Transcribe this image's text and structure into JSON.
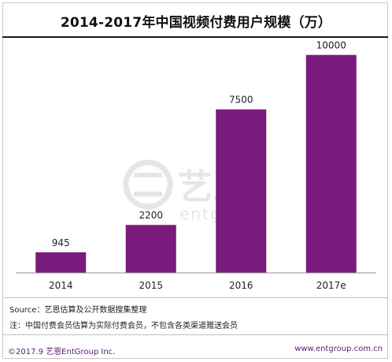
{
  "chart_data": {
    "type": "bar",
    "title": "2014-2017年中国视频付费用户规模（万）",
    "categories": [
      "2014",
      "2015",
      "2016",
      "2017e"
    ],
    "values": [
      945,
      2200,
      7500,
      10000
    ],
    "ylim": [
      0,
      11000
    ],
    "grid": false,
    "bar_color": "#7a1a7c",
    "show_data_labels": true
  },
  "notes": {
    "source": "Source：艺恩估算及公开数据搜集整理",
    "remark": "注：中国付费会员估算为实际付费会员，不包含各类渠道赠送会员"
  },
  "footer": {
    "copyright": "©2017.9 艺恩EntGroup Inc.",
    "website": "www.entgroup.com.cn"
  },
  "watermark": {
    "brand_cn": "艺恩",
    "brand_en": "entgroup",
    "color": "#e2e2e2"
  }
}
